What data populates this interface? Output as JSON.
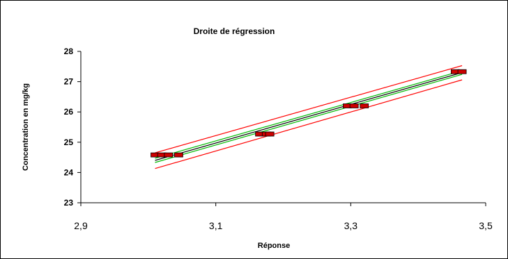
{
  "chart_data": {
    "type": "scatter",
    "title": "Droite de régression",
    "xlabel": "Réponse",
    "ylabel": "Concentration en mg/kg",
    "xlim": [
      2.9,
      3.5
    ],
    "ylim": [
      23,
      28
    ],
    "x_ticks": [
      2.9,
      3.1,
      3.3,
      3.5
    ],
    "x_tick_labels": [
      "2,9",
      "3,1",
      "3,3",
      "3,5"
    ],
    "y_ticks": [
      23,
      24,
      25,
      26,
      27,
      28
    ],
    "y_tick_labels": [
      "23",
      "24",
      "25",
      "26",
      "27",
      "28"
    ],
    "grid": false,
    "legend": "none",
    "series": [
      {
        "kind": "points",
        "color": "#cc0000",
        "x": [
          3.01,
          3.02,
          3.03,
          3.045,
          3.165,
          3.175,
          3.18,
          3.295,
          3.305,
          3.32,
          3.455,
          3.465
        ],
        "y": [
          24.58,
          24.58,
          24.58,
          24.58,
          25.27,
          25.27,
          25.27,
          26.2,
          26.2,
          26.2,
          27.33,
          27.33
        ]
      },
      {
        "kind": "line",
        "color": "#000000",
        "x": [
          3.01,
          3.465
        ],
        "y": [
          24.4,
          27.3
        ]
      },
      {
        "kind": "line",
        "color": "#00bb00",
        "x": [
          3.01,
          3.465
        ],
        "y": [
          24.47,
          27.36
        ]
      },
      {
        "kind": "line",
        "color": "#00bb00",
        "x": [
          3.01,
          3.465
        ],
        "y": [
          24.33,
          27.24
        ]
      },
      {
        "kind": "line",
        "color": "#ff0000",
        "x": [
          3.01,
          3.465
        ],
        "y": [
          24.65,
          27.53
        ]
      },
      {
        "kind": "line",
        "color": "#ff0000",
        "x": [
          3.01,
          3.465
        ],
        "y": [
          24.13,
          27.06
        ]
      }
    ]
  }
}
